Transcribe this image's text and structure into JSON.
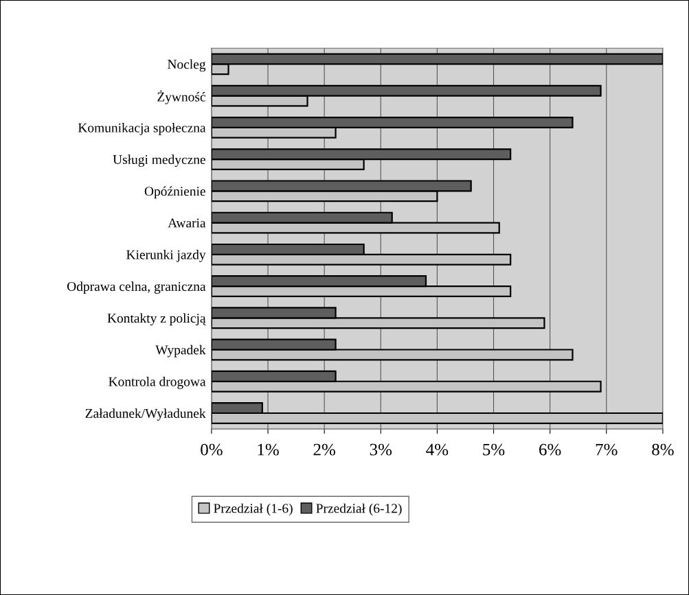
{
  "chart_data": {
    "type": "bar",
    "orientation": "horizontal",
    "categories": [
      "Nocleg",
      "Żywność",
      "Komunikacja społeczna",
      "Usługi medyczne",
      "Opóźnienie",
      "Awaria",
      "Kierunki jazdy",
      "Odprawa celna, graniczna",
      "Kontakty z policją",
      "Wypadek",
      "Kontrola drogowa",
      "Załadunek/Wyładunek"
    ],
    "series": [
      {
        "name": "Przedział (1-6)",
        "color": "#c4c4c4",
        "values": [
          0.3,
          1.7,
          2.2,
          2.7,
          4.0,
          5.1,
          5.3,
          5.3,
          5.9,
          6.4,
          6.9,
          8.0
        ]
      },
      {
        "name": "Przedział (6-12)",
        "color": "#5e5e5e",
        "values": [
          8.0,
          6.9,
          6.4,
          5.3,
          4.6,
          3.2,
          2.7,
          3.8,
          2.2,
          2.2,
          2.2,
          0.9
        ]
      }
    ],
    "xlim": [
      0,
      8
    ],
    "xticks": [
      {
        "value": 0,
        "label": "0%"
      },
      {
        "value": 1,
        "label": "1%"
      },
      {
        "value": 2,
        "label": "2%"
      },
      {
        "value": 3,
        "label": "3%"
      },
      {
        "value": 4,
        "label": "4%"
      },
      {
        "value": 5,
        "label": "5%"
      },
      {
        "value": 6,
        "label": "6%"
      },
      {
        "value": 7,
        "label": "7%"
      },
      {
        "value": 8,
        "label": "8%"
      }
    ],
    "grid": "x",
    "legend": "bottom"
  }
}
